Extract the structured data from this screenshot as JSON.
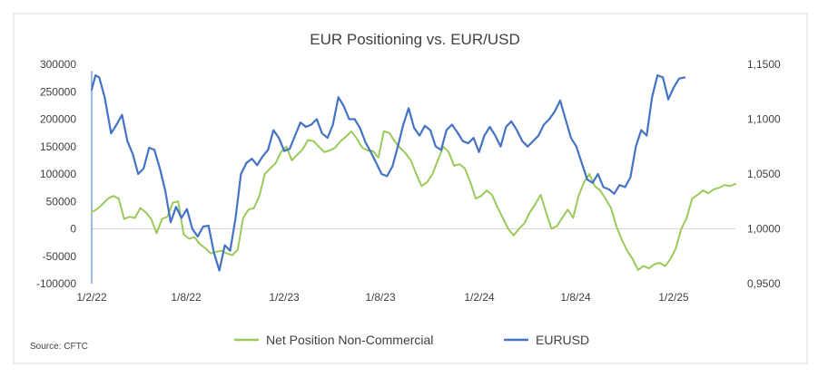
{
  "chart_data": {
    "type": "line",
    "title": "EUR Positioning vs. EUR/USD",
    "source": "Source: CFTC",
    "x_ticks": [
      "1/2/22",
      "1/8/22",
      "1/2/23",
      "1/8/23",
      "1/2/24",
      "1/8/24",
      "1/2/25"
    ],
    "y_left": {
      "ticks": [
        "300000",
        "250000",
        "200000",
        "150000",
        "100000",
        "50000",
        "0",
        "-50000",
        "-100000"
      ],
      "range": [
        -100000,
        300000
      ]
    },
    "y_right": {
      "ticks": [
        "1,1500",
        "1,1000",
        "1,0500",
        "1,0000",
        "0,9500"
      ],
      "range": [
        0.95,
        1.15
      ]
    },
    "grid": false,
    "legend_position": "bottom",
    "series": [
      {
        "name": "Net Position Non-Commercial",
        "axis": "left",
        "color": "#9BC95A",
        "points": [
          [
            0,
            30000
          ],
          [
            1,
            36000
          ],
          [
            2,
            45000
          ],
          [
            3,
            55000
          ],
          [
            4,
            60000
          ],
          [
            5,
            55000
          ],
          [
            6,
            18000
          ],
          [
            7,
            22000
          ],
          [
            8,
            20000
          ],
          [
            9,
            38000
          ],
          [
            10,
            30000
          ],
          [
            11,
            18000
          ],
          [
            12,
            -8000
          ],
          [
            13,
            18000
          ],
          [
            14,
            22000
          ],
          [
            15,
            48000
          ],
          [
            16,
            50000
          ],
          [
            17,
            -10000
          ],
          [
            18,
            -18000
          ],
          [
            19,
            -15000
          ],
          [
            20,
            -28000
          ],
          [
            21,
            -35000
          ],
          [
            22,
            -45000
          ],
          [
            23,
            -42000
          ],
          [
            24,
            -40000
          ],
          [
            25,
            -45000
          ],
          [
            26,
            -48000
          ],
          [
            27,
            -38000
          ],
          [
            28,
            20000
          ],
          [
            29,
            35000
          ],
          [
            30,
            38000
          ],
          [
            31,
            60000
          ],
          [
            32,
            100000
          ],
          [
            33,
            110000
          ],
          [
            34,
            120000
          ],
          [
            35,
            140000
          ],
          [
            36,
            150000
          ],
          [
            37,
            125000
          ],
          [
            38,
            135000
          ],
          [
            39,
            145000
          ],
          [
            40,
            162000
          ],
          [
            41,
            160000
          ],
          [
            42,
            150000
          ],
          [
            43,
            140000
          ],
          [
            44,
            143000
          ],
          [
            45,
            148000
          ],
          [
            46,
            160000
          ],
          [
            47,
            168000
          ],
          [
            48,
            178000
          ],
          [
            49,
            165000
          ],
          [
            50,
            148000
          ],
          [
            51,
            143000
          ],
          [
            52,
            142000
          ],
          [
            53,
            130000
          ],
          [
            54,
            178000
          ],
          [
            55,
            175000
          ],
          [
            56,
            160000
          ],
          [
            57,
            148000
          ],
          [
            58,
            138000
          ],
          [
            59,
            125000
          ],
          [
            60,
            100000
          ],
          [
            61,
            78000
          ],
          [
            62,
            85000
          ],
          [
            63,
            100000
          ],
          [
            64,
            125000
          ],
          [
            65,
            150000
          ],
          [
            66,
            140000
          ],
          [
            67,
            115000
          ],
          [
            68,
            118000
          ],
          [
            69,
            110000
          ],
          [
            70,
            85000
          ],
          [
            71,
            55000
          ],
          [
            72,
            60000
          ],
          [
            73,
            70000
          ],
          [
            74,
            62000
          ],
          [
            75,
            40000
          ],
          [
            76,
            20000
          ],
          [
            77,
            0
          ],
          [
            78,
            -12000
          ],
          [
            79,
            0
          ],
          [
            80,
            10000
          ],
          [
            81,
            30000
          ],
          [
            82,
            45000
          ],
          [
            83,
            62000
          ],
          [
            84,
            30000
          ],
          [
            85,
            0
          ],
          [
            86,
            5000
          ],
          [
            87,
            20000
          ],
          [
            88,
            35000
          ],
          [
            89,
            20000
          ],
          [
            90,
            60000
          ],
          [
            91,
            85000
          ],
          [
            92,
            100000
          ],
          [
            93,
            78000
          ],
          [
            94,
            70000
          ],
          [
            95,
            55000
          ],
          [
            96,
            38000
          ],
          [
            97,
            5000
          ],
          [
            98,
            -20000
          ],
          [
            99,
            -40000
          ],
          [
            100,
            -55000
          ],
          [
            101,
            -75000
          ],
          [
            102,
            -68000
          ],
          [
            103,
            -72000
          ],
          [
            104,
            -65000
          ],
          [
            105,
            -62000
          ],
          [
            106,
            -68000
          ],
          [
            107,
            -55000
          ],
          [
            108,
            -35000
          ],
          [
            109,
            0
          ],
          [
            110,
            20000
          ],
          [
            111,
            55000
          ],
          [
            112,
            62000
          ],
          [
            113,
            70000
          ],
          [
            114,
            65000
          ],
          [
            115,
            72000
          ],
          [
            116,
            75000
          ],
          [
            117,
            80000
          ],
          [
            118,
            78000
          ],
          [
            119,
            82000
          ]
        ]
      },
      {
        "name": "EURUSD",
        "axis": "right",
        "color": "#4472C4",
        "points": [
          [
            0,
            1.127
          ],
          [
            0.7,
            1.14
          ],
          [
            1.4,
            1.138
          ],
          [
            2.4,
            1.12
          ],
          [
            3.6,
            1.087
          ],
          [
            4.6,
            1.095
          ],
          [
            5.6,
            1.104
          ],
          [
            6.6,
            1.08
          ],
          [
            7.6,
            1.068
          ],
          [
            8.6,
            1.05
          ],
          [
            9.6,
            1.055
          ],
          [
            10.6,
            1.074
          ],
          [
            11.6,
            1.072
          ],
          [
            12.6,
            1.055
          ],
          [
            13.6,
            1.035
          ],
          [
            14.6,
            1.006
          ],
          [
            15.6,
            1.02
          ],
          [
            16.6,
            1.01
          ],
          [
            17.6,
            1.018
          ],
          [
            18.6,
            1.0
          ],
          [
            19.6,
            0.993
          ],
          [
            20.6,
            1.002
          ],
          [
            21.6,
            1.003
          ],
          [
            22.6,
            0.978
          ],
          [
            23.6,
            0.962
          ],
          [
            24.6,
            0.985
          ],
          [
            25.6,
            0.98
          ],
          [
            26.6,
            1.01
          ],
          [
            27.6,
            1.05
          ],
          [
            28.6,
            1.06
          ],
          [
            29.6,
            1.064
          ],
          [
            30.6,
            1.058
          ],
          [
            31.6,
            1.066
          ],
          [
            32.6,
            1.072
          ],
          [
            33.6,
            1.09
          ],
          [
            34.6,
            1.083
          ],
          [
            35.6,
            1.071
          ],
          [
            36.6,
            1.073
          ],
          [
            37.6,
            1.085
          ],
          [
            38.6,
            1.097
          ],
          [
            39.6,
            1.093
          ],
          [
            40.6,
            1.095
          ],
          [
            41.6,
            1.1
          ],
          [
            42.6,
            1.087
          ],
          [
            43.6,
            1.083
          ],
          [
            44.6,
            1.095
          ],
          [
            45.6,
            1.12
          ],
          [
            46.6,
            1.112
          ],
          [
            47.6,
            1.1
          ],
          [
            48.6,
            1.1
          ],
          [
            49.6,
            1.092
          ],
          [
            50.6,
            1.079
          ],
          [
            51.6,
            1.07
          ],
          [
            52.6,
            1.06
          ],
          [
            53.6,
            1.05
          ],
          [
            54.6,
            1.048
          ],
          [
            55.6,
            1.057
          ],
          [
            56.6,
            1.075
          ],
          [
            57.6,
            1.095
          ],
          [
            58.6,
            1.11
          ],
          [
            59.6,
            1.092
          ],
          [
            60.6,
            1.085
          ],
          [
            61.6,
            1.094
          ],
          [
            62.6,
            1.09
          ],
          [
            63.6,
            1.075
          ],
          [
            64.6,
            1.072
          ],
          [
            65.6,
            1.09
          ],
          [
            66.6,
            1.095
          ],
          [
            67.6,
            1.088
          ],
          [
            68.6,
            1.08
          ],
          [
            69.6,
            1.078
          ],
          [
            70.6,
            1.083
          ],
          [
            71.6,
            1.07
          ],
          [
            72.6,
            1.085
          ],
          [
            73.6,
            1.093
          ],
          [
            74.6,
            1.085
          ],
          [
            75.6,
            1.075
          ],
          [
            76.6,
            1.093
          ],
          [
            77.6,
            1.098
          ],
          [
            78.6,
            1.09
          ],
          [
            79.6,
            1.08
          ],
          [
            80.6,
            1.075
          ],
          [
            81.6,
            1.08
          ],
          [
            82.6,
            1.085
          ],
          [
            83.6,
            1.095
          ],
          [
            84.6,
            1.1
          ],
          [
            85.6,
            1.107
          ],
          [
            86.6,
            1.117
          ],
          [
            87.6,
            1.1
          ],
          [
            88.6,
            1.083
          ],
          [
            89.6,
            1.075
          ],
          [
            90.6,
            1.06
          ],
          [
            91.6,
            1.045
          ],
          [
            92.6,
            1.042
          ],
          [
            93.6,
            1.05
          ],
          [
            94.6,
            1.038
          ],
          [
            95.6,
            1.036
          ],
          [
            96.6,
            1.032
          ],
          [
            97.6,
            1.04
          ],
          [
            98.6,
            1.038
          ],
          [
            99.6,
            1.047
          ],
          [
            100.6,
            1.075
          ],
          [
            101.6,
            1.09
          ],
          [
            102.6,
            1.085
          ],
          [
            103.6,
            1.12
          ],
          [
            104.6,
            1.14
          ],
          [
            105.6,
            1.138
          ],
          [
            106.6,
            1.118
          ],
          [
            107.6,
            1.129
          ],
          [
            108.6,
            1.137
          ],
          [
            109.6,
            1.138
          ]
        ]
      }
    ]
  }
}
